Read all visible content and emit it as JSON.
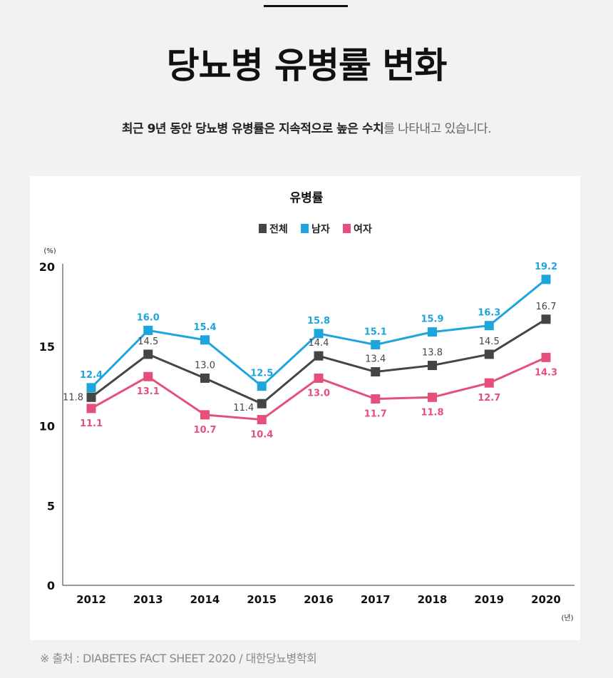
{
  "header": {
    "title": "당뇨병 유병률 변화",
    "subtitle_bold": "최근 9년 동안 당뇨병 유병률은 지속적으로 높은 수치",
    "subtitle_light": "를 나타내고 있습니다."
  },
  "footer": "※ 출처 : DIABETES FACT SHEET 2020 / 대한당뇨병학회",
  "chart_data": {
    "type": "line",
    "title": "유병률",
    "ylabel": "(%)",
    "xlabel": "(년)",
    "ylim": [
      0,
      20
    ],
    "yticks": [
      "0",
      "5",
      "10",
      "15",
      "20"
    ],
    "categories": [
      "2012",
      "2013",
      "2014",
      "2015",
      "2016",
      "2017",
      "2018",
      "2019",
      "2020"
    ],
    "legend_position": "top",
    "grid": false,
    "series": [
      {
        "name": "전체",
        "color": "#454545",
        "values": [
          11.8,
          14.5,
          13.0,
          11.4,
          14.4,
          13.4,
          13.8,
          14.5,
          16.7
        ],
        "labels": [
          "11.8",
          "14.5",
          "13.0",
          "11.4",
          "14.4",
          "13.4",
          "13.8",
          "14.5",
          "16.7"
        ]
      },
      {
        "name": "남자",
        "color": "#1ea5de",
        "values": [
          12.4,
          16.0,
          15.4,
          12.5,
          15.8,
          15.1,
          15.9,
          16.3,
          19.2
        ],
        "labels": [
          "12.4",
          "16.0",
          "15.4",
          "12.5",
          "15.8",
          "15.1",
          "15.9",
          "16.3",
          "19.2"
        ]
      },
      {
        "name": "여자",
        "color": "#e5507b",
        "values": [
          11.1,
          13.1,
          10.7,
          10.4,
          13.0,
          11.7,
          11.8,
          12.7,
          14.3
        ],
        "labels": [
          "11.1",
          "13.1",
          "10.7",
          "10.4",
          "13.0",
          "11.7",
          "11.8",
          "12.7",
          "14.3"
        ]
      }
    ]
  }
}
